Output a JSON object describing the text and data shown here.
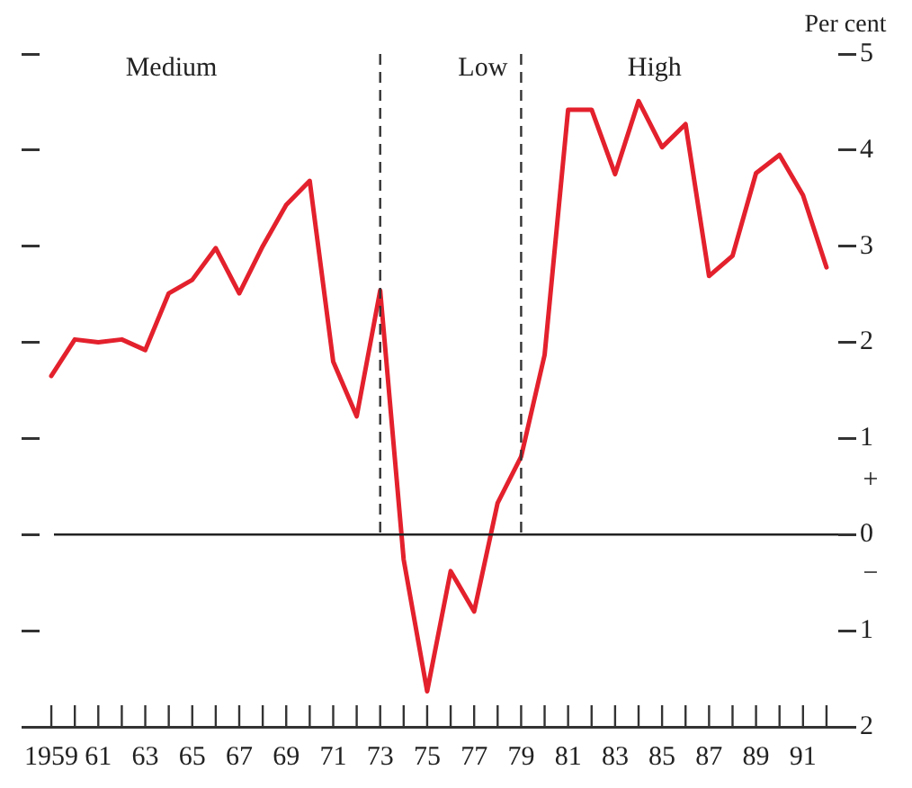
{
  "chart_data": {
    "type": "line",
    "ylabel": "Per cent",
    "marker": "none",
    "line_style": "solid",
    "grid": false,
    "legend": false,
    "x": [
      1959,
      1960,
      1961,
      1962,
      1963,
      1964,
      1965,
      1966,
      1967,
      1968,
      1969,
      1970,
      1971,
      1972,
      1973,
      1974,
      1975,
      1976,
      1977,
      1978,
      1979,
      1980,
      1981,
      1982,
      1983,
      1984,
      1985,
      1986,
      1987,
      1988,
      1989,
      1990,
      1991,
      1992
    ],
    "series": [
      {
        "color": "#e3212d",
        "values": [
          1.65,
          2.03,
          2.0,
          2.03,
          1.92,
          2.51,
          2.65,
          2.98,
          2.51,
          3.0,
          3.43,
          3.68,
          1.8,
          1.23,
          2.54,
          -0.26,
          -1.63,
          -0.38,
          -0.8,
          0.33,
          0.81,
          1.87,
          4.42,
          4.42,
          3.75,
          4.51,
          4.03,
          4.27,
          2.69,
          2.9,
          3.76,
          3.95,
          3.53,
          2.78
        ]
      }
    ],
    "xlim": [
      1958.5,
      1992.5
    ],
    "xticks": [
      {
        "value": 1959,
        "label": "1959"
      },
      {
        "value": 1960,
        "label": null
      },
      {
        "value": 1961,
        "label": "61"
      },
      {
        "value": 1962,
        "label": null
      },
      {
        "value": 1963,
        "label": "63"
      },
      {
        "value": 1964,
        "label": null
      },
      {
        "value": 1965,
        "label": "65"
      },
      {
        "value": 1966,
        "label": null
      },
      {
        "value": 1967,
        "label": "67"
      },
      {
        "value": 1968,
        "label": null
      },
      {
        "value": 1969,
        "label": "69"
      },
      {
        "value": 1970,
        "label": null
      },
      {
        "value": 1971,
        "label": "71"
      },
      {
        "value": 1972,
        "label": null
      },
      {
        "value": 1973,
        "label": "73"
      },
      {
        "value": 1974,
        "label": null
      },
      {
        "value": 1975,
        "label": "75"
      },
      {
        "value": 1976,
        "label": null
      },
      {
        "value": 1977,
        "label": "77"
      },
      {
        "value": 1978,
        "label": null
      },
      {
        "value": 1979,
        "label": "79"
      },
      {
        "value": 1980,
        "label": null
      },
      {
        "value": 1981,
        "label": "81"
      },
      {
        "value": 1982,
        "label": null
      },
      {
        "value": 1983,
        "label": "83"
      },
      {
        "value": 1984,
        "label": null
      },
      {
        "value": 1985,
        "label": "85"
      },
      {
        "value": 1986,
        "label": null
      },
      {
        "value": 1987,
        "label": "87"
      },
      {
        "value": 1988,
        "label": null
      },
      {
        "value": 1989,
        "label": "89"
      },
      {
        "value": 1990,
        "label": null
      },
      {
        "value": 1991,
        "label": "91"
      },
      {
        "value": 1992,
        "label": null
      }
    ],
    "ylim": [
      -2,
      5
    ],
    "yticks": [
      {
        "value": -2,
        "label": "2"
      },
      {
        "value": -1,
        "label": "1"
      },
      0,
      1,
      2,
      3,
      4,
      5
    ],
    "ref_lines": [
      {
        "axis": "x",
        "value": 1973,
        "line_style": "dashed",
        "color": "#333333"
      },
      {
        "axis": "x",
        "value": 1979,
        "line_style": "dashed",
        "color": "#333333"
      },
      {
        "axis": "y",
        "value": 0,
        "line_style": "solid",
        "color": "#222222"
      }
    ],
    "annotations": [
      "Medium",
      "Low",
      "High",
      "+",
      "−"
    ]
  }
}
